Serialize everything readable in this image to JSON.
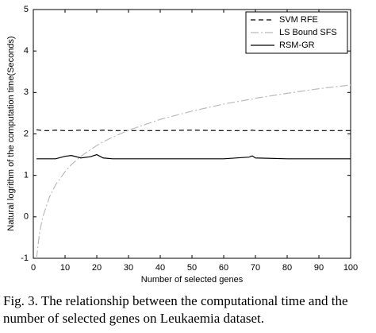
{
  "chart_data": {
    "type": "line",
    "x_label": "Number of selected genes",
    "y_label": "Natural logrithm of the computation time(Seconds)",
    "x": [
      1,
      2,
      3,
      5,
      7,
      10,
      12,
      15,
      18,
      20,
      22,
      25,
      30,
      40,
      50,
      60,
      68,
      69,
      70,
      80,
      90,
      100
    ],
    "series": [
      {
        "name": "SVM RFE",
        "color": "#000000",
        "dash": "6 4",
        "values": [
          2.1,
          2.09,
          2.08,
          2.08,
          2.09,
          2.08,
          2.08,
          2.09,
          2.08,
          2.08,
          2.09,
          2.08,
          2.08,
          2.08,
          2.09,
          2.08,
          2.08,
          2.09,
          2.08,
          2.08,
          2.08,
          2.08
        ]
      },
      {
        "name": "LS Bound SFS",
        "color": "#bbbbbb",
        "dash": "10 3 2 3",
        "values": [
          -1,
          -0.37,
          0.0,
          0.46,
          0.77,
          1.09,
          1.26,
          1.46,
          1.62,
          1.72,
          1.81,
          1.92,
          2.09,
          2.35,
          2.55,
          2.72,
          2.83,
          2.84,
          2.86,
          2.98,
          3.09,
          3.18
        ]
      },
      {
        "name": "RSM-GR",
        "color": "#000000",
        "dash": "none",
        "values": [
          1.4,
          1.4,
          1.4,
          1.4,
          1.4,
          1.46,
          1.48,
          1.42,
          1.45,
          1.5,
          1.42,
          1.4,
          1.4,
          1.4,
          1.4,
          1.4,
          1.44,
          1.47,
          1.42,
          1.4,
          1.4,
          1.4
        ]
      }
    ],
    "xlim": [
      0,
      100
    ],
    "xticks": [
      0,
      10,
      20,
      30,
      40,
      50,
      60,
      70,
      80,
      90,
      100
    ],
    "ylim": [
      -1,
      5
    ],
    "yticks": [
      -1,
      0,
      1,
      2,
      3,
      4,
      5
    ],
    "legend": "top-right",
    "caption": [
      "Fig. 3. The relationship between the computational time and the",
      "number of selected genes on Leukaemia dataset."
    ]
  }
}
